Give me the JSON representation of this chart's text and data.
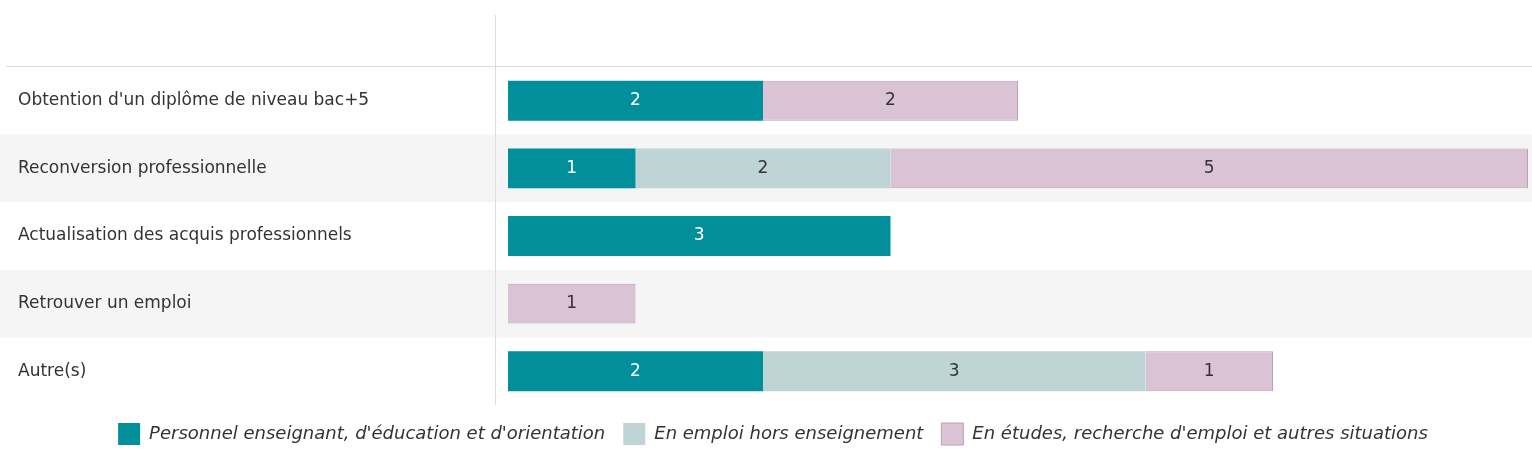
{
  "chart_data": {
    "type": "bar",
    "orientation": "horizontal",
    "stacked": true,
    "data_labels": true,
    "legend": "bottom",
    "categories": [
      "Obtention d'un diplôme de niveau bac+5",
      "Reconversion professionnelle",
      "Actualisation des acquis professionnels",
      "Retrouver un emploi",
      "Autre(s)"
    ],
    "series": [
      {
        "name": "Personnel enseignant, d'éducation et d'orientation",
        "color": "#008f9b",
        "values": [
          2,
          1,
          3,
          null,
          2
        ]
      },
      {
        "name": "En emploi hors enseignement",
        "color": "#bfd4d5",
        "values": [
          null,
          2,
          null,
          null,
          3
        ]
      },
      {
        "name": "En études, recherche d'emploi et autres situations",
        "color": "#d9c3d5",
        "values": [
          2,
          5,
          null,
          1,
          1
        ]
      }
    ]
  }
}
